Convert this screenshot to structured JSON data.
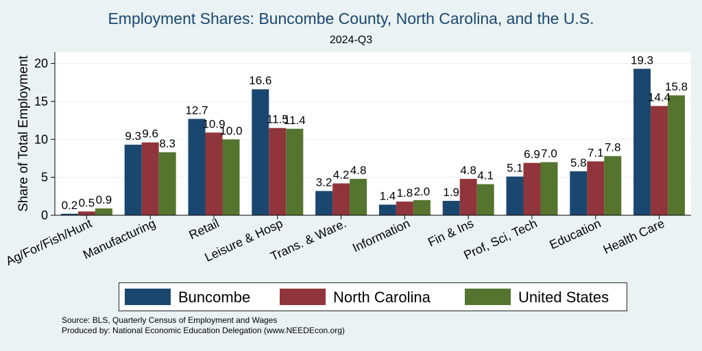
{
  "chart_data": {
    "type": "bar",
    "title": "Employment Shares: Buncombe County, North Carolina, and the U.S.",
    "subtitle": "2024-Q3",
    "ylabel": "Share of Total Employment",
    "xlabel": "",
    "ylim": [
      0,
      21.5
    ],
    "yticks": [
      0,
      5,
      10,
      15,
      20
    ],
    "grid": true,
    "legend_position": "bottom",
    "categories": [
      "Ag/For/Fish/Hunt",
      "Manufacturing",
      "Retail",
      "Leisure & Hosp",
      "Trans. & Ware.",
      "Information",
      "Fin & Ins",
      "Prof, Sci, Tech",
      "Education",
      "Health Care"
    ],
    "series": [
      {
        "name": "Buncombe",
        "color": "#1a476f",
        "values": [
          0.2,
          9.3,
          12.7,
          16.6,
          3.2,
          1.4,
          1.9,
          5.1,
          5.8,
          19.3
        ],
        "labels": [
          "0.2",
          "9.3",
          "12.7",
          "16.6",
          "3.2",
          "1.4",
          "1.9",
          "5.1",
          "5.8",
          "19.3"
        ]
      },
      {
        "name": "North Carolina",
        "color": "#90353b",
        "values": [
          0.5,
          9.6,
          10.9,
          11.5,
          4.2,
          1.8,
          4.8,
          6.9,
          7.1,
          14.4
        ],
        "labels": [
          "0.5",
          "9.6",
          "10.9",
          "11.5",
          "4.2",
          "1.8",
          "4.8",
          "6.9",
          "7.1",
          "14.4"
        ]
      },
      {
        "name": "United States",
        "color": "#55752f",
        "values": [
          0.9,
          8.3,
          10.0,
          11.4,
          4.8,
          2.0,
          4.1,
          7.0,
          7.8,
          15.8
        ],
        "labels": [
          "0.9",
          "8.3",
          "10.0",
          "11.4",
          "4.8",
          "2.0",
          "4.1",
          "7.0",
          "7.8",
          "15.8"
        ]
      }
    ]
  },
  "notes": {
    "source": "Source: BLS, Quarterly Census of Employment and Wages",
    "produced_by": "Produced by: National Economic Education Delegation (www.NEEDEcon.org)"
  }
}
